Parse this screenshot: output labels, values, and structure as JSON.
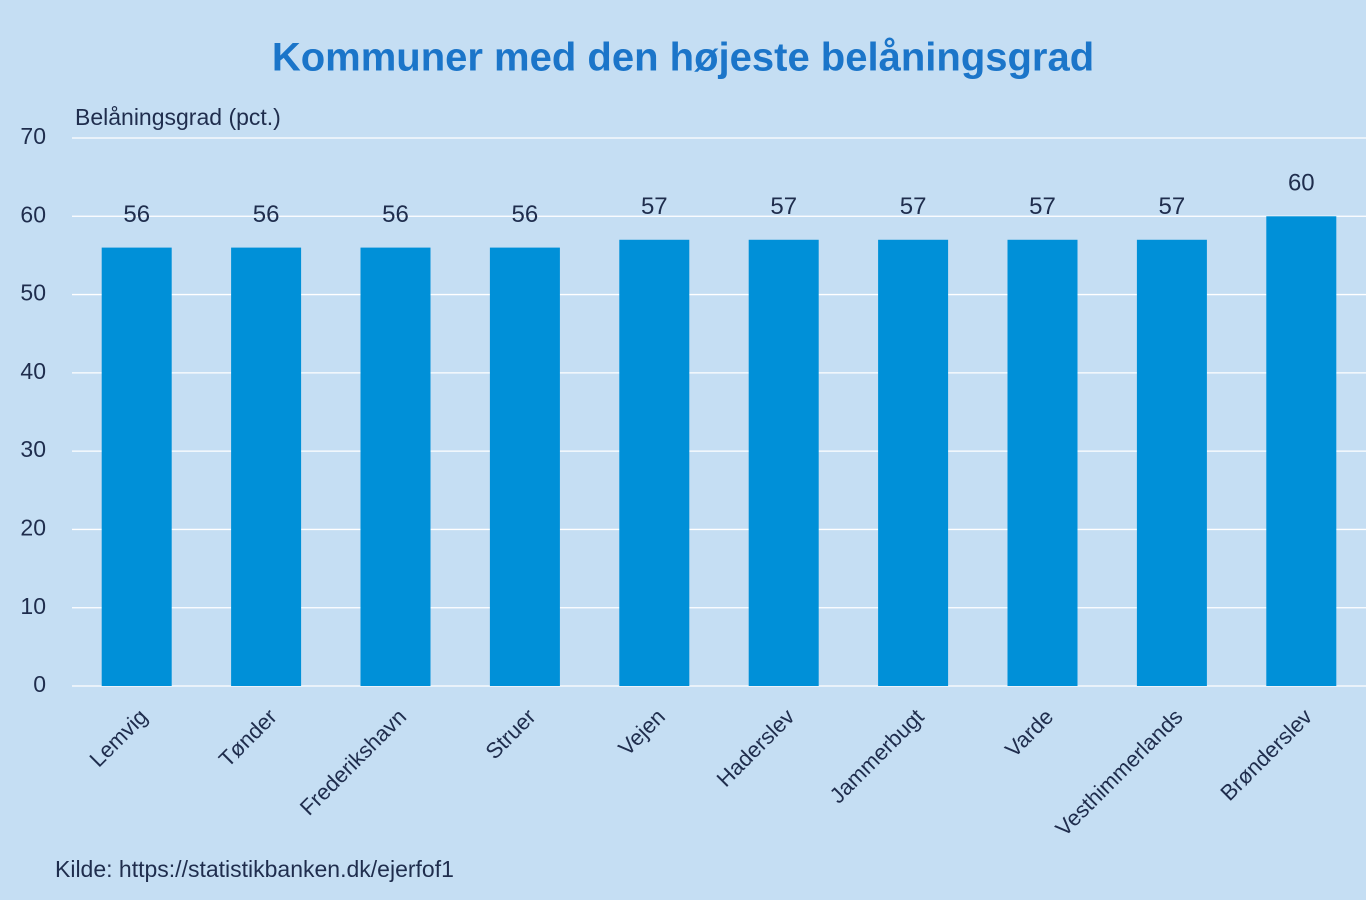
{
  "chart_data": {
    "type": "bar",
    "title": "Kommuner med den højeste belåningsgrad",
    "y_label": "Belåningsgrad (pct.)",
    "source": "Kilde: https://statistikbanken.dk/ejerfof1",
    "categories": [
      "Lemvig",
      "Tønder",
      "Frederikshavn",
      "Struer",
      "Vejen",
      "Haderslev",
      "Jammerbugt",
      "Varde",
      "Vesthimmerlands",
      "Brønderslev"
    ],
    "values": [
      56,
      56,
      56,
      56,
      57,
      57,
      57,
      57,
      57,
      60
    ],
    "color": "#0090d8",
    "ylim": [
      0,
      70
    ],
    "yticks": [
      0,
      10,
      20,
      30,
      40,
      50,
      60,
      70
    ],
    "grid": true
  }
}
